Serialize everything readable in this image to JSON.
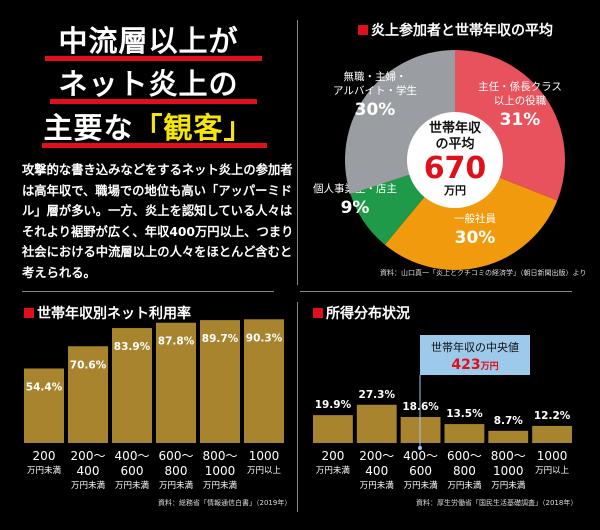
{
  "headline": {
    "line1": "中流層以上が",
    "line2": "ネット炎上の",
    "line3a": "主要な",
    "line3b": "「観客」"
  },
  "body_text": "攻撃的な書き込みなどをするネット炎上の参加者は高年収で、職場での地位も高い「アッパーミドル」層が多い。一方、炎上を認知している人々はそれより裾野が広く、年収400万円以上、つまり社会における中流層以上の人々をほとんど含むと考えられる。",
  "colors": {
    "accent": "#e0101a",
    "bar": "#a8842e",
    "pie_red": "#e8525c",
    "pie_orange": "#f29a0e",
    "pie_green": "#1e9a48",
    "pie_gray": "#9a9ea3",
    "callout": "#9dc9ea",
    "highlight": "#f5e50a"
  },
  "chart_data": [
    {
      "type": "pie",
      "title": "炎上参加者と世帯年収の平均",
      "center_label": {
        "line1": "世帯年収",
        "line2": "の平均",
        "value": "670",
        "unit": "万円"
      },
      "slices": [
        {
          "label": "主任・係長クラス以上の役職",
          "label_l1": "主任・係長クラス",
          "label_l2": "以上の役職",
          "value": 31,
          "text": "31%",
          "color": "#e8525c"
        },
        {
          "label": "一般社員",
          "value": 30,
          "text": "30%",
          "color": "#f29a0e"
        },
        {
          "label": "個人事業主・店主",
          "value": 9,
          "text": "9%",
          "color": "#1e9a48"
        },
        {
          "label": "無職・主婦・アルバイト・学生",
          "label_l1": "無職・主婦・",
          "label_l2": "アルバイト・学生",
          "value": 30,
          "text": "30%",
          "color": "#9a9ea3"
        }
      ],
      "source": "資料：山口真一「炎上とクチコミの経済学」（朝日新聞出版）より"
    },
    {
      "type": "bar",
      "title": "世帯年収別ネット利用率",
      "categories": [
        [
          "200",
          "万円未満"
        ],
        [
          "200〜",
          "400",
          "万円未満"
        ],
        [
          "400〜",
          "600",
          "万円未満"
        ],
        [
          "600〜",
          "800",
          "万円未満"
        ],
        [
          "800〜",
          "1000",
          "万円未満"
        ],
        [
          "1000",
          "万円以上"
        ]
      ],
      "values": [
        54.4,
        70.6,
        83.9,
        87.8,
        89.7,
        90.3
      ],
      "labels": [
        "54.4%",
        "70.6%",
        "83.9%",
        "87.8%",
        "89.7%",
        "90.3%"
      ],
      "source": "資料：総務省「情報通信白書」（2019年）"
    },
    {
      "type": "bar",
      "title": "所得分布状況",
      "categories": [
        [
          "200",
          "万円未満"
        ],
        [
          "200〜",
          "400",
          "万円未満"
        ],
        [
          "400〜",
          "600",
          "万円未満"
        ],
        [
          "600〜",
          "800",
          "万円未満"
        ],
        [
          "800〜",
          "1000",
          "万円未満"
        ],
        [
          "1000",
          "万円以上"
        ]
      ],
      "values": [
        19.9,
        27.3,
        18.6,
        13.5,
        8.7,
        12.2
      ],
      "labels": [
        "19.9%",
        "27.3%",
        "18.6%",
        "13.5%",
        "8.7%",
        "12.2%"
      ],
      "annotation": {
        "line1": "世帯年収の中央値",
        "value": "423",
        "unit": "万円"
      },
      "source": "資料：厚生労働省「国民生活基礎調査」（2018年）"
    }
  ]
}
